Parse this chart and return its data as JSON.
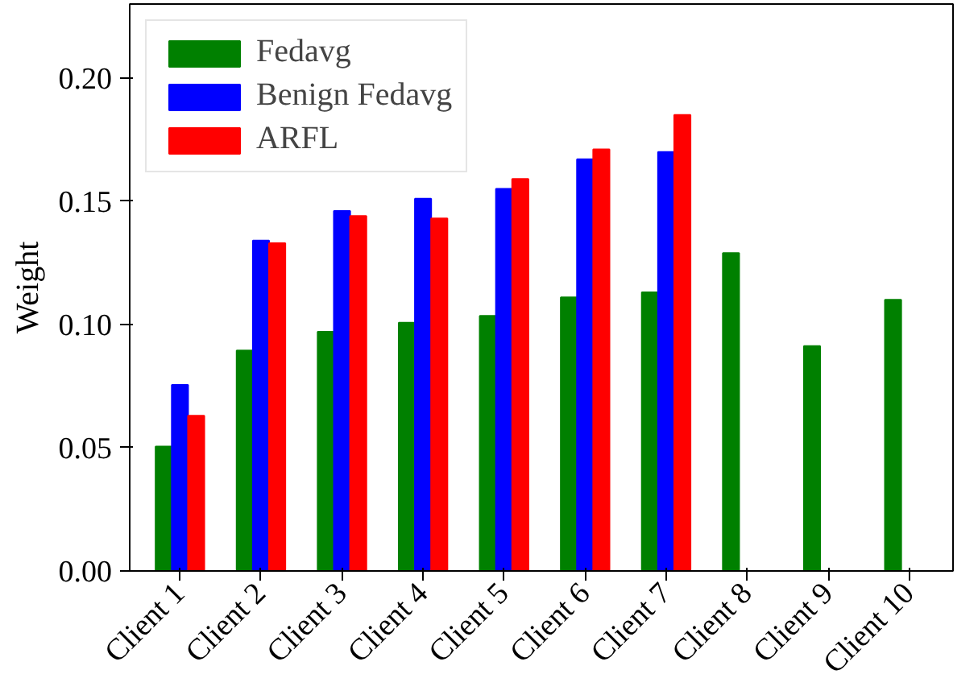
{
  "chart_data": {
    "type": "bar",
    "ylabel": "Weight",
    "categories": [
      "Client 1",
      "Client 2",
      "Client 3",
      "Client 4",
      "Client 5",
      "Client 6",
      "Client 7",
      "Client 8",
      "Client 9",
      "Client 10"
    ],
    "series": [
      {
        "name": "Fedavg",
        "color": "#008000",
        "values": [
          0.0505,
          0.0894,
          0.097,
          0.1007,
          0.1035,
          0.111,
          0.113,
          0.129,
          0.0912,
          0.11
        ]
      },
      {
        "name": "Benign Fedavg",
        "color": "#0000ff",
        "values": [
          0.0755,
          0.134,
          0.146,
          0.151,
          0.155,
          0.167,
          0.17,
          null,
          null,
          null
        ]
      },
      {
        "name": "ARFL",
        "color": "#ff0000",
        "values": [
          0.063,
          0.133,
          0.144,
          0.143,
          0.159,
          0.171,
          0.185,
          null,
          null,
          null
        ]
      }
    ],
    "ylim": [
      0,
      0.23
    ],
    "yticks": [
      {
        "value": 0,
        "label": "0.00"
      },
      {
        "value": 0.05,
        "label": "0.05"
      },
      {
        "value": 0.1,
        "label": "0.10"
      },
      {
        "value": 0.15,
        "label": "0.15"
      },
      {
        "value": 0.2,
        "label": "0.20"
      }
    ],
    "grid": false,
    "legend": "top left"
  }
}
